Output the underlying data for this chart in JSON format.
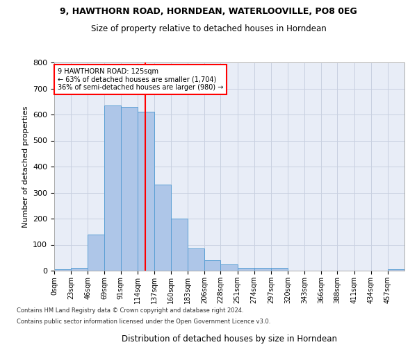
{
  "title1": "9, HAWTHORN ROAD, HORNDEAN, WATERLOOVILLE, PO8 0EG",
  "title2": "Size of property relative to detached houses in Horndean",
  "xlabel": "Distribution of detached houses by size in Horndean",
  "ylabel": "Number of detached properties",
  "footnote1": "Contains HM Land Registry data © Crown copyright and database right 2024.",
  "footnote2": "Contains public sector information licensed under the Open Government Licence v3.0.",
  "bin_edges": [
    0,
    23,
    46,
    69,
    91,
    114,
    137,
    160,
    183,
    206,
    228,
    251,
    274,
    297,
    320,
    343,
    366,
    388,
    411,
    434,
    457,
    480
  ],
  "bar_heights": [
    5,
    10,
    140,
    635,
    630,
    610,
    330,
    200,
    85,
    40,
    25,
    10,
    12,
    10,
    0,
    0,
    0,
    0,
    0,
    0,
    5
  ],
  "bar_color": "#aec6e8",
  "bar_edge_color": "#5a9fd4",
  "grid_color": "#c8d0e0",
  "bg_color": "#e8edf7",
  "red_line_x": 125,
  "annotation_text": "9 HAWTHORN ROAD: 125sqm\n← 63% of detached houses are smaller (1,704)\n36% of semi-detached houses are larger (980) →",
  "annotation_box_color": "white",
  "annotation_box_edge": "red",
  "ylim": [
    0,
    800
  ],
  "yticks": [
    0,
    100,
    200,
    300,
    400,
    500,
    600,
    700,
    800
  ],
  "tick_labels": [
    "0sqm",
    "23sqm",
    "46sqm",
    "69sqm",
    "91sqm",
    "114sqm",
    "137sqm",
    "160sqm",
    "183sqm",
    "206sqm",
    "228sqm",
    "251sqm",
    "274sqm",
    "297sqm",
    "320sqm",
    "343sqm",
    "366sqm",
    "388sqm",
    "411sqm",
    "434sqm",
    "457sqm"
  ]
}
